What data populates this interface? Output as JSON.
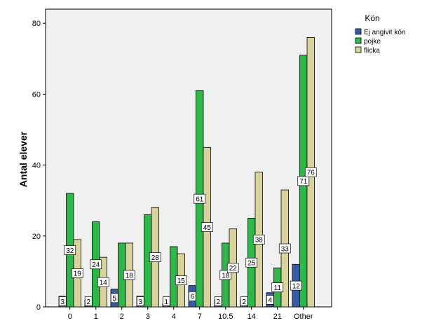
{
  "chart_data": {
    "type": "bar",
    "title": "",
    "xlabel": "",
    "ylabel": "Antal elever",
    "ylim": [
      0,
      84
    ],
    "yticks": [
      0,
      20,
      40,
      60,
      80
    ],
    "grid": false,
    "legend_position": "top-right",
    "legend_title": "Kön",
    "categories": [
      "0",
      "1",
      "2",
      "3",
      "4",
      "7",
      "10.5",
      "14",
      "21",
      "Other"
    ],
    "series": [
      {
        "name": "Ej angivit kön",
        "color": "#3a5aa8",
        "values": [
          3,
          2,
          5,
          3,
          1,
          6,
          2,
          2,
          4,
          12
        ]
      },
      {
        "name": "pojke",
        "color": "#2eb84a",
        "values": [
          32,
          24,
          18,
          26,
          17,
          61,
          18,
          25,
          11,
          71
        ]
      },
      {
        "name": "flicka",
        "color": "#d9d29c",
        "values": [
          19,
          14,
          18,
          28,
          15,
          45,
          22,
          38,
          33,
          76
        ]
      }
    ],
    "data_labels": [
      [
        "3",
        "2",
        "5",
        "3",
        "1",
        "6",
        "2",
        "2",
        "4",
        "12"
      ],
      [
        "32",
        "24",
        "",
        "",
        "",
        "61",
        "18",
        "25",
        "11",
        "71"
      ],
      [
        "19",
        "14",
        "18",
        "28",
        "15",
        "45",
        "22",
        "38",
        "33",
        "76"
      ]
    ]
  }
}
